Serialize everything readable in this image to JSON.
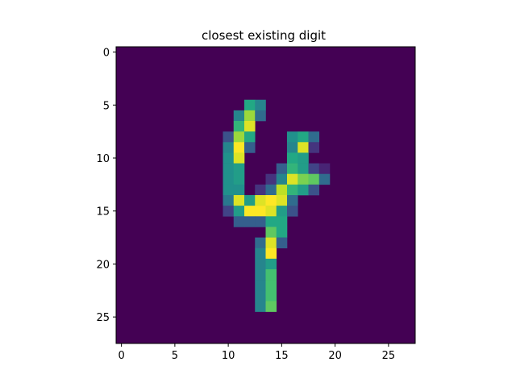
{
  "chart_data": {
    "type": "heatmap",
    "title": "closest existing digit",
    "xlabel": "",
    "ylabel": "",
    "colormap": "viridis",
    "xlim": [
      -0.5,
      27.5
    ],
    "ylim": [
      27.5,
      -0.5
    ],
    "x_ticks": [
      0,
      5,
      10,
      15,
      20,
      25
    ],
    "y_ticks": [
      0,
      5,
      10,
      15,
      20,
      25
    ],
    "vmin": 0,
    "vmax": 1,
    "grid": false,
    "background_value": 0,
    "cells": [
      [
        5,
        12,
        0.6
      ],
      [
        5,
        13,
        0.45
      ],
      [
        6,
        11,
        0.45
      ],
      [
        6,
        12,
        0.85
      ],
      [
        6,
        13,
        0.35
      ],
      [
        7,
        11,
        0.65
      ],
      [
        7,
        12,
        0.95
      ],
      [
        8,
        10,
        0.25
      ],
      [
        8,
        11,
        0.85
      ],
      [
        8,
        12,
        0.6
      ],
      [
        8,
        16,
        0.5
      ],
      [
        8,
        17,
        0.6
      ],
      [
        8,
        18,
        0.35
      ],
      [
        9,
        10,
        0.45
      ],
      [
        9,
        11,
        1.0
      ],
      [
        9,
        12,
        0.3
      ],
      [
        9,
        16,
        0.45
      ],
      [
        9,
        17,
        0.95
      ],
      [
        9,
        18,
        0.15
      ],
      [
        10,
        10,
        0.5
      ],
      [
        10,
        11,
        0.95
      ],
      [
        10,
        16,
        0.6
      ],
      [
        10,
        17,
        0.55
      ],
      [
        11,
        10,
        0.5
      ],
      [
        11,
        11,
        0.55
      ],
      [
        11,
        15,
        0.3
      ],
      [
        11,
        16,
        0.65
      ],
      [
        11,
        17,
        0.55
      ],
      [
        11,
        18,
        0.2
      ],
      [
        11,
        19,
        0.1
      ],
      [
        12,
        10,
        0.5
      ],
      [
        12,
        11,
        0.55
      ],
      [
        12,
        14,
        0.15
      ],
      [
        12,
        15,
        0.45
      ],
      [
        12,
        16,
        0.95
      ],
      [
        12,
        17,
        0.8
      ],
      [
        12,
        18,
        0.75
      ],
      [
        12,
        19,
        0.35
      ],
      [
        13,
        10,
        0.5
      ],
      [
        13,
        11,
        0.5
      ],
      [
        13,
        13,
        0.15
      ],
      [
        13,
        14,
        0.35
      ],
      [
        13,
        15,
        0.9
      ],
      [
        13,
        16,
        0.65
      ],
      [
        13,
        17,
        0.55
      ],
      [
        13,
        18,
        0.25
      ],
      [
        14,
        10,
        0.4
      ],
      [
        14,
        11,
        0.95
      ],
      [
        14,
        12,
        0.55
      ],
      [
        14,
        13,
        0.95
      ],
      [
        14,
        14,
        1.0
      ],
      [
        14,
        15,
        0.95
      ],
      [
        14,
        16,
        0.35
      ],
      [
        15,
        10,
        0.2
      ],
      [
        15,
        11,
        0.55
      ],
      [
        15,
        12,
        1.0
      ],
      [
        15,
        13,
        1.0
      ],
      [
        15,
        14,
        0.95
      ],
      [
        15,
        15,
        0.55
      ],
      [
        15,
        16,
        0.25
      ],
      [
        16,
        11,
        0.3
      ],
      [
        16,
        12,
        0.3
      ],
      [
        16,
        13,
        0.3
      ],
      [
        16,
        14,
        0.6
      ],
      [
        16,
        15,
        0.6
      ],
      [
        17,
        14,
        0.75
      ],
      [
        17,
        15,
        0.6
      ],
      [
        18,
        13,
        0.35
      ],
      [
        18,
        14,
        0.95
      ],
      [
        18,
        15,
        0.3
      ],
      [
        19,
        13,
        0.45
      ],
      [
        19,
        14,
        1.0
      ],
      [
        20,
        13,
        0.45
      ],
      [
        20,
        14,
        0.55
      ],
      [
        21,
        13,
        0.45
      ],
      [
        21,
        14,
        0.7
      ],
      [
        22,
        13,
        0.45
      ],
      [
        22,
        14,
        0.7
      ],
      [
        23,
        13,
        0.45
      ],
      [
        23,
        14,
        0.7
      ],
      [
        24,
        13,
        0.45
      ],
      [
        24,
        14,
        0.75
      ]
    ]
  }
}
